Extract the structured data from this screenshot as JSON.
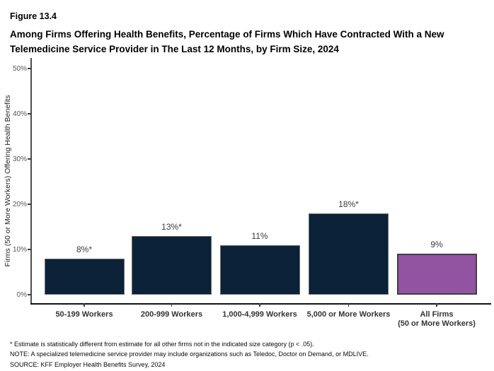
{
  "figure": {
    "label": "Figure 13.4",
    "title": "Among Firms Offering Health Benefits, Percentage of Firms Which Have Contracted With a New Telemedicine Service Provider in The Last 12 Months, by Firm Size, 2024"
  },
  "chart_data": {
    "type": "bar",
    "title": "Among Firms Offering Health Benefits, Percentage of Firms Which Have Contracted With a New Telemedicine Service Provider in The Last 12 Months, by Firm Size, 2024",
    "categories": [
      "50-199 Workers",
      "200-999 Workers",
      "1,000-4,999 Workers",
      "5,000 or More Workers",
      "All Firms\n(50 or More Workers)"
    ],
    "values": [
      8,
      13,
      11,
      18,
      9
    ],
    "bar_labels": [
      "8%*",
      "13%*",
      "11%",
      "18%*",
      "9%"
    ],
    "bar_colors": [
      "#0b2239",
      "#0b2239",
      "#0b2239",
      "#0b2239",
      "#9253a2"
    ],
    "bar_border_colors": [
      "#6e6e6e",
      "#6e6e6e",
      "#6e6e6e",
      "#6e6e6e",
      "#404040"
    ],
    "bar_border_widths": [
      1,
      1,
      1,
      1,
      2
    ],
    "xlabel": "",
    "ylabel": "Firms (50 or More Workers) Offering Health Benefits",
    "ylim": [
      0,
      50
    ],
    "ytick_values": [
      0,
      10,
      20,
      30,
      40,
      50
    ],
    "ytick_labels": [
      "0%",
      "10%",
      "20%",
      "30%",
      "40%",
      "50%"
    ],
    "grid": false,
    "legend": "none"
  },
  "colors": {
    "navy_bar": "#0b2239",
    "purple_bar": "#9253a2",
    "purple_bar_border": "#404040",
    "axis_line": "#121212",
    "tick_text": "#565656"
  },
  "footnotes": [
    "* Estimate is statistically different from estimate for all other firms not in the indicated size category (p < .05).",
    "NOTE: A specialized telemedicine service provider may include organizations such as Teledoc, Doctor on Demand, or MDLIVE.",
    "SOURCE: KFF Employer Health Benefits Survey, 2024"
  ]
}
